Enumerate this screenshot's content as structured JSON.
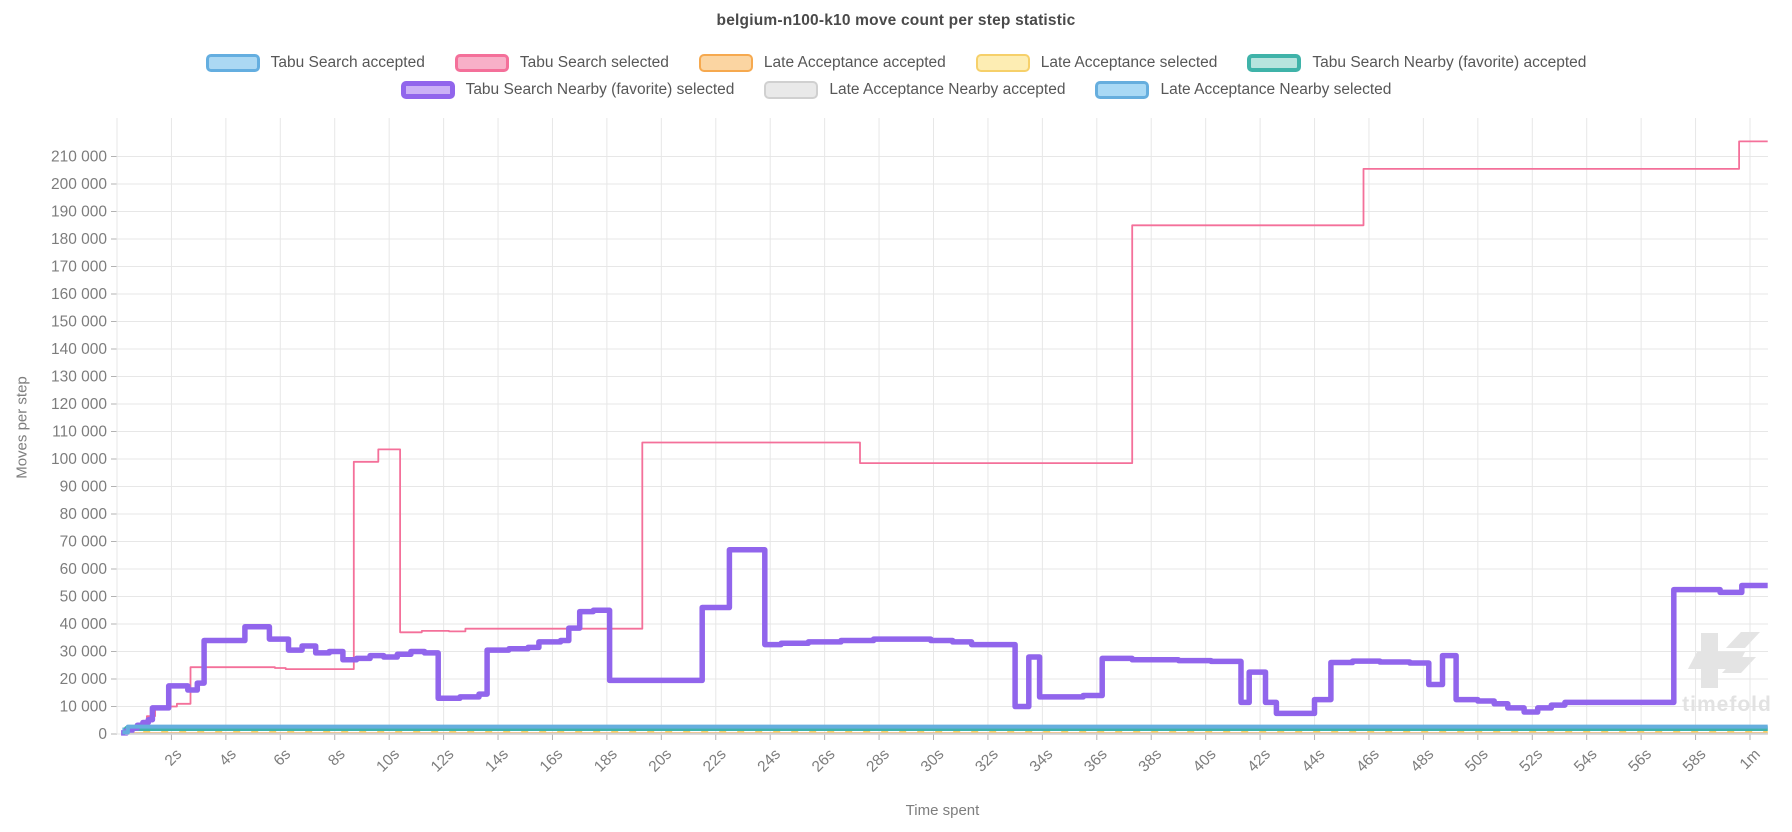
{
  "title": "belgium-n100-k10 move count per step statistic",
  "watermark": "timefold",
  "chart_data": {
    "type": "line",
    "title": "belgium-n100-k10 move count per step statistic",
    "xlabel": "Time spent",
    "ylabel": "Moves per step",
    "x_unit": "seconds",
    "xlim": [
      0,
      60.65
    ],
    "ylim": [
      0,
      223000
    ],
    "grid": true,
    "step_interpolation": "step-after",
    "legend_position": "top",
    "legend_rows": [
      5,
      3
    ],
    "x_ticks": [
      {
        "t": 2,
        "label": "2s"
      },
      {
        "t": 4,
        "label": "4s"
      },
      {
        "t": 6,
        "label": "6s"
      },
      {
        "t": 8,
        "label": "8s"
      },
      {
        "t": 10,
        "label": "10s"
      },
      {
        "t": 12,
        "label": "12s"
      },
      {
        "t": 14,
        "label": "14s"
      },
      {
        "t": 16,
        "label": "16s"
      },
      {
        "t": 18,
        "label": "18s"
      },
      {
        "t": 20,
        "label": "20s"
      },
      {
        "t": 22,
        "label": "22s"
      },
      {
        "t": 24,
        "label": "24s"
      },
      {
        "t": 26,
        "label": "26s"
      },
      {
        "t": 28,
        "label": "28s"
      },
      {
        "t": 30,
        "label": "30s"
      },
      {
        "t": 32,
        "label": "32s"
      },
      {
        "t": 34,
        "label": "34s"
      },
      {
        "t": 36,
        "label": "36s"
      },
      {
        "t": 38,
        "label": "38s"
      },
      {
        "t": 40,
        "label": "40s"
      },
      {
        "t": 42,
        "label": "42s"
      },
      {
        "t": 44,
        "label": "44s"
      },
      {
        "t": 46,
        "label": "46s"
      },
      {
        "t": 48,
        "label": "48s"
      },
      {
        "t": 50,
        "label": "50s"
      },
      {
        "t": 52,
        "label": "52s"
      },
      {
        "t": 54,
        "label": "54s"
      },
      {
        "t": 56,
        "label": "56s"
      },
      {
        "t": 58,
        "label": "58s"
      },
      {
        "t": 60,
        "label": "1m"
      }
    ],
    "y_ticks": {
      "min": 0,
      "max": 210000,
      "step": 10000
    },
    "series": [
      {
        "name": "Tabu Search accepted",
        "color": "#64aee0",
        "fill": "#abd8f3",
        "line_width": 3,
        "legend_border": 3,
        "points": [
          [
            0.2,
            1800
          ],
          [
            60.65,
            1800
          ]
        ]
      },
      {
        "name": "Tabu Search selected",
        "color": "#f4709a",
        "fill": "#f8b0c8",
        "line_width": 1.8,
        "legend_border": 3,
        "points": [
          [
            0.25,
            500
          ],
          [
            0.55,
            1800
          ],
          [
            0.85,
            3800
          ],
          [
            1.1,
            6500
          ],
          [
            1.4,
            10000
          ],
          [
            2.2,
            11000
          ],
          [
            2.7,
            24300
          ],
          [
            5.8,
            24000
          ],
          [
            6.2,
            23600
          ],
          [
            8.7,
            99000
          ],
          [
            9.6,
            103500
          ],
          [
            10.4,
            37000
          ],
          [
            11.2,
            37500
          ],
          [
            12.2,
            37300
          ],
          [
            12.8,
            38300
          ],
          [
            19.3,
            106000
          ],
          [
            27.3,
            98500
          ],
          [
            37.3,
            185000
          ],
          [
            45.8,
            205500
          ],
          [
            59.6,
            215500
          ],
          [
            60.65,
            215500
          ]
        ]
      },
      {
        "name": "Late Acceptance accepted",
        "color": "#f6a94f",
        "fill": "#fbd5a2",
        "line_width": 2.2,
        "legend_border": 2.5,
        "points": [
          [
            0.3,
            250
          ],
          [
            60.65,
            250
          ]
        ]
      },
      {
        "name": "Late Acceptance selected",
        "color": "#f6d06a",
        "fill": "#fdedb3",
        "line_width": 2.2,
        "legend_border": 2.5,
        "dash": "7 11",
        "points": [
          [
            0.3,
            850
          ],
          [
            60.65,
            850
          ]
        ]
      },
      {
        "name": "Tabu Search Nearby (favorite) accepted",
        "color": "#3fb3a9",
        "fill": "#b7e4de",
        "line_width": 5,
        "legend_border": 4.5,
        "points": [
          [
            0.2,
            400
          ],
          [
            0.35,
            2000
          ],
          [
            60.65,
            2000
          ]
        ]
      },
      {
        "name": "Tabu Search Nearby (favorite) selected",
        "color": "#9165ec",
        "fill": "#cbb0f6",
        "line_width": 5.5,
        "legend_border": 5,
        "points": [
          [
            0.15,
            400
          ],
          [
            0.35,
            1200
          ],
          [
            0.55,
            2200
          ],
          [
            0.75,
            3200
          ],
          [
            0.95,
            4200
          ],
          [
            1.15,
            5200
          ],
          [
            1.3,
            9500
          ],
          [
            1.9,
            17500
          ],
          [
            2.6,
            16000
          ],
          [
            2.95,
            18500
          ],
          [
            3.2,
            34000
          ],
          [
            4.7,
            39000
          ],
          [
            5.6,
            34500
          ],
          [
            6.3,
            30500
          ],
          [
            6.8,
            32000
          ],
          [
            7.3,
            29500
          ],
          [
            7.8,
            30000
          ],
          [
            8.3,
            27000
          ],
          [
            8.8,
            27500
          ],
          [
            9.3,
            28500
          ],
          [
            9.8,
            28000
          ],
          [
            10.3,
            29000
          ],
          [
            10.8,
            30000
          ],
          [
            11.3,
            29500
          ],
          [
            11.8,
            13000
          ],
          [
            12.6,
            13500
          ],
          [
            13.3,
            14500
          ],
          [
            13.6,
            30500
          ],
          [
            14.4,
            31000
          ],
          [
            15.1,
            31500
          ],
          [
            15.5,
            33500
          ],
          [
            16.3,
            34000
          ],
          [
            16.6,
            38500
          ],
          [
            17.0,
            44500
          ],
          [
            17.5,
            45000
          ],
          [
            18.1,
            19500
          ],
          [
            21.5,
            46000
          ],
          [
            22.5,
            67000
          ],
          [
            23.8,
            32500
          ],
          [
            24.4,
            33000
          ],
          [
            25.4,
            33500
          ],
          [
            26.6,
            34000
          ],
          [
            27.8,
            34500
          ],
          [
            29.9,
            34000
          ],
          [
            30.7,
            33500
          ],
          [
            31.4,
            32500
          ],
          [
            33.0,
            10000
          ],
          [
            33.5,
            28000
          ],
          [
            33.9,
            13500
          ],
          [
            35.5,
            14000
          ],
          [
            36.2,
            27500
          ],
          [
            37.3,
            27000
          ],
          [
            39.0,
            26700
          ],
          [
            40.2,
            26400
          ],
          [
            41.3,
            11500
          ],
          [
            41.6,
            22500
          ],
          [
            42.2,
            11500
          ],
          [
            42.6,
            7500
          ],
          [
            44.0,
            12500
          ],
          [
            44.6,
            26000
          ],
          [
            45.4,
            26500
          ],
          [
            46.4,
            26200
          ],
          [
            47.5,
            25800
          ],
          [
            48.2,
            18000
          ],
          [
            48.7,
            28500
          ],
          [
            49.2,
            12500
          ],
          [
            50.0,
            12000
          ],
          [
            50.6,
            11000
          ],
          [
            51.1,
            9500
          ],
          [
            51.7,
            8000
          ],
          [
            52.2,
            9500
          ],
          [
            52.7,
            10500
          ],
          [
            53.2,
            11500
          ],
          [
            57.2,
            52500
          ],
          [
            58.9,
            51500
          ],
          [
            59.7,
            54000
          ],
          [
            60.65,
            54000
          ]
        ]
      },
      {
        "name": "Late Acceptance Nearby accepted",
        "color": "#d0d0d0",
        "fill": "#e9e9e9",
        "line_width": 2,
        "legend_border": 2.5,
        "points": [
          [
            0.3,
            120
          ],
          [
            60.65,
            120
          ]
        ]
      },
      {
        "name": "Late Acceptance Nearby selected",
        "color": "#66aede",
        "fill": "#a9d9f5",
        "line_width": 4,
        "legend_border": 3,
        "points": [
          [
            0.2,
            600
          ],
          [
            0.4,
            2700
          ],
          [
            60.65,
            2700
          ]
        ]
      }
    ]
  }
}
